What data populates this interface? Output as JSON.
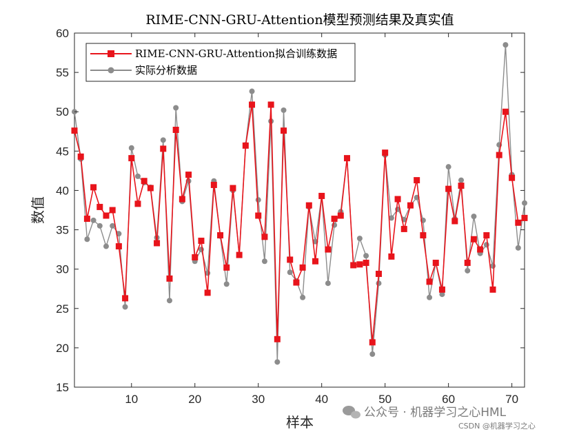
{
  "chart_data": {
    "type": "line",
    "title": "RIME-CNN-GRU-Attention模型预测结果及真实值",
    "xlabel": "样本",
    "ylabel": "数值",
    "xlim": [
      1,
      72
    ],
    "ylim": [
      15,
      60
    ],
    "xticks": [
      10,
      20,
      30,
      40,
      50,
      60,
      70
    ],
    "yticks": [
      15,
      20,
      25,
      30,
      35,
      40,
      45,
      50,
      55,
      60
    ],
    "grid": false,
    "legend_location": "top-left",
    "x": [
      1,
      2,
      3,
      4,
      5,
      6,
      7,
      8,
      9,
      10,
      11,
      12,
      13,
      14,
      15,
      16,
      17,
      18,
      19,
      20,
      21,
      22,
      23,
      24,
      25,
      26,
      27,
      28,
      29,
      30,
      31,
      32,
      33,
      34,
      35,
      36,
      37,
      38,
      39,
      40,
      41,
      42,
      43,
      44,
      45,
      46,
      47,
      48,
      49,
      50,
      51,
      52,
      53,
      54,
      55,
      56,
      57,
      58,
      59,
      60,
      61,
      62,
      63,
      64,
      65,
      66,
      67,
      68,
      69,
      70,
      71,
      72
    ],
    "series": [
      {
        "name": "RIME-CNN-GRU-Attention拟合训练数据",
        "color": "#e8141b",
        "marker": "square",
        "values": [
          47.6,
          44.3,
          36.4,
          40.4,
          37.9,
          36.8,
          37.5,
          32.9,
          26.3,
          44.1,
          38.3,
          41.2,
          40.3,
          33.3,
          45.3,
          28.8,
          47.7,
          38.9,
          42.0,
          31.5,
          33.6,
          27.0,
          40.7,
          34.3,
          30.2,
          40.3,
          31.8,
          45.7,
          50.9,
          36.8,
          34.1,
          50.9,
          21.1,
          47.6,
          31.2,
          28.3,
          30.2,
          38.1,
          31.0,
          39.3,
          32.5,
          36.4,
          36.8,
          44.1,
          30.5,
          30.6,
          30.8,
          20.7,
          29.4,
          44.8,
          31.6,
          38.9,
          35.1,
          38.1,
          41.3,
          34.3,
          28.4,
          30.8,
          27.4,
          40.2,
          36.1,
          40.6,
          30.8,
          33.8,
          32.5,
          34.3,
          27.4,
          44.5,
          50.0,
          41.6,
          35.9,
          36.5
        ]
      },
      {
        "name": "实际分析数据",
        "color": "#8c8c8c",
        "marker": "circle",
        "values": [
          50.0,
          44.0,
          33.8,
          36.2,
          35.5,
          32.9,
          35.5,
          34.5,
          25.2,
          45.4,
          41.8,
          41.0,
          40.4,
          34.0,
          46.4,
          26.0,
          50.5,
          38.6,
          41.2,
          31.0,
          32.5,
          29.5,
          41.2,
          34.2,
          28.1,
          40.0,
          31.8,
          45.8,
          52.6,
          38.8,
          31.0,
          48.8,
          18.2,
          50.2,
          29.6,
          28.5,
          26.4,
          37.9,
          33.5,
          39.3,
          28.2,
          35.6,
          37.3,
          44.1,
          30.5,
          33.9,
          31.7,
          19.2,
          28.2,
          44.5,
          36.5,
          37.6,
          36.3,
          38.1,
          39.1,
          36.2,
          26.4,
          30.8,
          26.8,
          43.0,
          36.4,
          41.3,
          29.8,
          36.7,
          32.0,
          33.1,
          30.4,
          45.8,
          58.5,
          42.0,
          32.7,
          38.4
        ]
      }
    ]
  },
  "watermark": {
    "main": "公众号 · 机器学习之心HML",
    "small": "CSDN @机器学习之心"
  }
}
